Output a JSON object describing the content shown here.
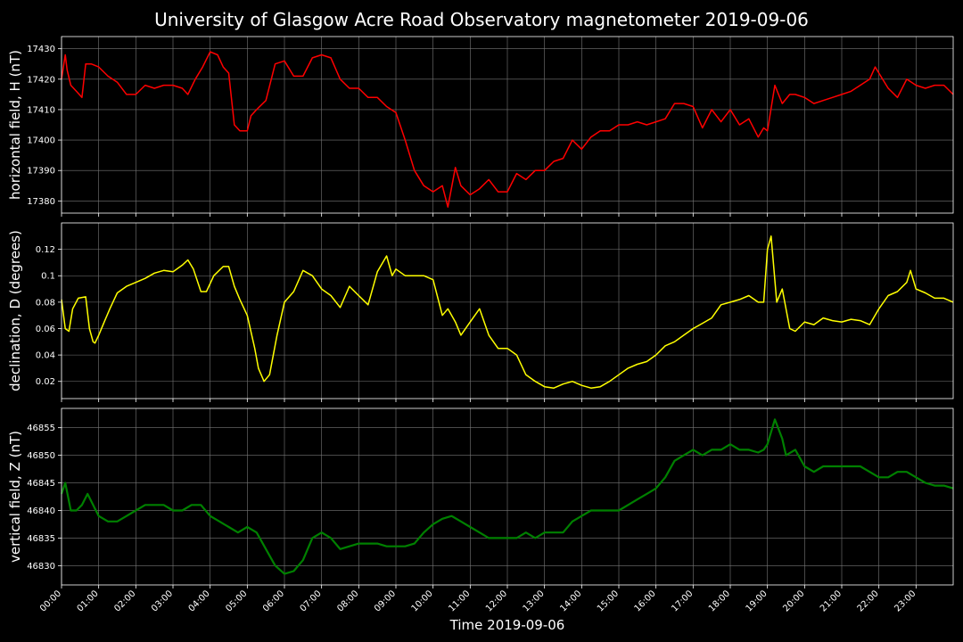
{
  "title": "University of Glasgow Acre Road Observatory magnetometer 2019-09-06",
  "colors": {
    "background": "#000000",
    "axes": "#ffffff",
    "grid": "#777777",
    "H": "#ff0000",
    "D": "#ffff00",
    "Z": "#008000"
  },
  "chart_data": [
    {
      "type": "line",
      "ylabel": "horizontal field, H (nT)",
      "ylim": [
        17376,
        17434
      ],
      "yticks": [
        17380,
        17390,
        17400,
        17410,
        17420,
        17430
      ],
      "xlim": [
        0,
        24
      ],
      "grid": true,
      "series": [
        {
          "color_key": "H",
          "x": [
            0.0,
            0.1,
            0.15,
            0.25,
            0.4,
            0.55,
            0.65,
            0.8,
            1.0,
            1.25,
            1.5,
            1.75,
            2.0,
            2.25,
            2.5,
            2.75,
            3.0,
            3.25,
            3.4,
            3.6,
            3.8,
            4.0,
            4.2,
            4.35,
            4.5,
            4.65,
            4.8,
            5.0,
            5.1,
            5.25,
            5.5,
            5.75,
            6.0,
            6.25,
            6.5,
            6.75,
            7.0,
            7.25,
            7.5,
            7.75,
            8.0,
            8.25,
            8.5,
            8.75,
            9.0,
            9.25,
            9.5,
            9.75,
            10.0,
            10.25,
            10.4,
            10.6,
            10.75,
            11.0,
            11.25,
            11.5,
            11.75,
            12.0,
            12.25,
            12.5,
            12.75,
            13.0,
            13.25,
            13.5,
            13.75,
            14.0,
            14.25,
            14.5,
            14.75,
            15.0,
            15.25,
            15.5,
            15.75,
            16.0,
            16.25,
            16.5,
            16.75,
            17.0,
            17.25,
            17.5,
            17.75,
            18.0,
            18.25,
            18.5,
            18.75,
            18.9,
            19.0,
            19.2,
            19.4,
            19.6,
            19.75,
            20.0,
            20.25,
            20.5,
            20.75,
            21.0,
            21.25,
            21.5,
            21.75,
            21.9,
            22.0,
            22.25,
            22.5,
            22.75,
            23.0,
            23.25,
            23.5,
            23.75,
            24.0
          ],
          "y": [
            17420,
            17428,
            17423,
            17418,
            17416,
            17414,
            17425,
            17425,
            17424,
            17421,
            17419,
            17415,
            17415,
            17418,
            17417,
            17418,
            17418,
            17417,
            17415,
            17420,
            17424,
            17429,
            17428,
            17424,
            17422,
            17405,
            17403,
            17403,
            17408,
            17410,
            17413,
            17425,
            17426,
            17421,
            17421,
            17427,
            17428,
            17427,
            17420,
            17417,
            17417,
            17414,
            17414,
            17411,
            17409,
            17400,
            17390,
            17385,
            17383,
            17385,
            17378,
            17391,
            17385,
            17382,
            17384,
            17387,
            17383,
            17383,
            17389,
            17387,
            17390,
            17390,
            17393,
            17394,
            17400,
            17397,
            17401,
            17403,
            17403,
            17405,
            17405,
            17406,
            17405,
            17406,
            17407,
            17412,
            17412,
            17411,
            17404,
            17410,
            17406,
            17410,
            17405,
            17407,
            17401,
            17404,
            17403,
            17418,
            17412,
            17415,
            17415,
            17414,
            17412,
            17413,
            17414,
            17415,
            17416,
            17418,
            17420,
            17424,
            17422,
            17417,
            17414,
            17420,
            17418,
            17417,
            17418,
            17418,
            17415
          ]
        }
      ]
    },
    {
      "type": "line",
      "ylabel": "declination, D (degrees)",
      "ylim": [
        0.007,
        0.14
      ],
      "yticks": [
        0.02,
        0.04,
        0.06,
        0.08,
        0.1,
        0.12
      ],
      "xlim": [
        0,
        24
      ],
      "grid": true,
      "series": [
        {
          "color_key": "D",
          "x": [
            0.0,
            0.1,
            0.2,
            0.3,
            0.45,
            0.65,
            0.75,
            0.85,
            0.9,
            1.0,
            1.15,
            1.3,
            1.5,
            1.75,
            2.0,
            2.25,
            2.5,
            2.75,
            3.0,
            3.25,
            3.4,
            3.55,
            3.75,
            3.9,
            4.1,
            4.35,
            4.5,
            4.65,
            4.8,
            5.0,
            5.2,
            5.3,
            5.45,
            5.6,
            5.8,
            6.0,
            6.25,
            6.5,
            6.75,
            7.0,
            7.25,
            7.5,
            7.75,
            8.0,
            8.25,
            8.5,
            8.75,
            8.9,
            9.0,
            9.25,
            9.5,
            9.75,
            10.0,
            10.25,
            10.4,
            10.6,
            10.75,
            11.0,
            11.25,
            11.5,
            11.75,
            12.0,
            12.25,
            12.5,
            12.75,
            13.0,
            13.25,
            13.5,
            13.75,
            14.0,
            14.25,
            14.5,
            14.75,
            15.0,
            15.25,
            15.5,
            15.75,
            16.0,
            16.25,
            16.5,
            16.75,
            17.0,
            17.25,
            17.5,
            17.75,
            18.0,
            18.25,
            18.5,
            18.75,
            18.9,
            19.0,
            19.1,
            19.25,
            19.4,
            19.6,
            19.75,
            20.0,
            20.25,
            20.5,
            20.75,
            21.0,
            21.25,
            21.5,
            21.75,
            22.0,
            22.25,
            22.5,
            22.75,
            22.85,
            23.0,
            23.25,
            23.5,
            23.75,
            24.0
          ],
          "y": [
            0.082,
            0.06,
            0.058,
            0.075,
            0.083,
            0.084,
            0.06,
            0.05,
            0.049,
            0.055,
            0.065,
            0.075,
            0.087,
            0.092,
            0.095,
            0.098,
            0.102,
            0.104,
            0.103,
            0.108,
            0.112,
            0.105,
            0.088,
            0.088,
            0.1,
            0.107,
            0.107,
            0.092,
            0.082,
            0.07,
            0.045,
            0.03,
            0.02,
            0.025,
            0.055,
            0.08,
            0.088,
            0.104,
            0.1,
            0.09,
            0.085,
            0.076,
            0.092,
            0.085,
            0.078,
            0.103,
            0.115,
            0.1,
            0.105,
            0.1,
            0.1,
            0.1,
            0.097,
            0.07,
            0.075,
            0.065,
            0.055,
            0.065,
            0.075,
            0.055,
            0.045,
            0.045,
            0.04,
            0.025,
            0.02,
            0.016,
            0.015,
            0.018,
            0.02,
            0.017,
            0.015,
            0.016,
            0.02,
            0.025,
            0.03,
            0.033,
            0.035,
            0.04,
            0.047,
            0.05,
            0.055,
            0.06,
            0.064,
            0.068,
            0.078,
            0.08,
            0.082,
            0.085,
            0.08,
            0.08,
            0.12,
            0.13,
            0.08,
            0.09,
            0.06,
            0.058,
            0.065,
            0.063,
            0.068,
            0.066,
            0.065,
            0.067,
            0.066,
            0.063,
            0.075,
            0.085,
            0.088,
            0.095,
            0.104,
            0.09,
            0.087,
            0.083,
            0.083,
            0.08
          ]
        }
      ]
    },
    {
      "type": "line",
      "ylabel": "vertical field, Z (nT)",
      "ylim": [
        46826.5,
        46858.5
      ],
      "yticks": [
        46830,
        46835,
        46840,
        46845,
        46850,
        46855
      ],
      "xlim": [
        0,
        24
      ],
      "grid": true,
      "xlabel": "Time 2019-09-06",
      "xticks": [
        "00:00",
        "01:00",
        "02:00",
        "03:00",
        "04:00",
        "05:00",
        "06:00",
        "07:00",
        "08:00",
        "09:00",
        "10:00",
        "11:00",
        "12:00",
        "13:00",
        "14:00",
        "15:00",
        "16:00",
        "17:00",
        "18:00",
        "19:00",
        "20:00",
        "21:00",
        "22:00",
        "23:00"
      ],
      "series": [
        {
          "color_key": "Z",
          "x": [
            0.0,
            0.1,
            0.25,
            0.4,
            0.55,
            0.7,
            0.85,
            1.0,
            1.25,
            1.5,
            1.75,
            2.0,
            2.25,
            2.5,
            2.75,
            3.0,
            3.25,
            3.5,
            3.75,
            4.0,
            4.25,
            4.5,
            4.75,
            5.0,
            5.25,
            5.5,
            5.75,
            6.0,
            6.25,
            6.5,
            6.75,
            7.0,
            7.25,
            7.5,
            7.75,
            8.0,
            8.25,
            8.5,
            8.75,
            9.0,
            9.25,
            9.5,
            9.75,
            10.0,
            10.25,
            10.5,
            10.75,
            11.0,
            11.25,
            11.5,
            11.75,
            12.0,
            12.25,
            12.5,
            12.75,
            13.0,
            13.25,
            13.5,
            13.75,
            14.0,
            14.25,
            14.5,
            14.75,
            15.0,
            15.25,
            15.5,
            15.75,
            16.0,
            16.25,
            16.5,
            16.75,
            17.0,
            17.25,
            17.5,
            17.75,
            18.0,
            18.25,
            18.5,
            18.75,
            18.9,
            19.0,
            19.2,
            19.4,
            19.5,
            19.75,
            20.0,
            20.25,
            20.5,
            20.75,
            21.0,
            21.25,
            21.5,
            21.75,
            22.0,
            22.25,
            22.5,
            22.75,
            23.0,
            23.25,
            23.5,
            23.75,
            24.0
          ],
          "y": [
            46843,
            46845,
            46840,
            46840,
            46841,
            46843,
            46841,
            46839,
            46838,
            46838,
            46839,
            46840,
            46841,
            46841,
            46841,
            46840,
            46840,
            46841,
            46841,
            46839,
            46838,
            46837,
            46836,
            46837,
            46836,
            46833,
            46830,
            46828.5,
            46829,
            46831,
            46835,
            46836,
            46835,
            46833,
            46833.5,
            46834,
            46834,
            46834,
            46833.5,
            46833.5,
            46833.5,
            46834,
            46836,
            46837.5,
            46838.5,
            46839,
            46838,
            46837,
            46836,
            46835,
            46835,
            46835,
            46835,
            46836,
            46835,
            46836,
            46836,
            46836,
            46838,
            46839,
            46840,
            46840,
            46840,
            46840,
            46841,
            46842,
            46843,
            46844,
            46846,
            46849,
            46850,
            46851,
            46850,
            46851,
            46851,
            46852,
            46851,
            46851,
            46850.5,
            46851,
            46852,
            46856.5,
            46853,
            46850,
            46851,
            46848,
            46847,
            46848,
            46848,
            46848,
            46848,
            46848,
            46847,
            46846,
            46846,
            46847,
            46847,
            46846,
            46845,
            46844.5,
            46844.5,
            46844
          ]
        }
      ]
    }
  ]
}
